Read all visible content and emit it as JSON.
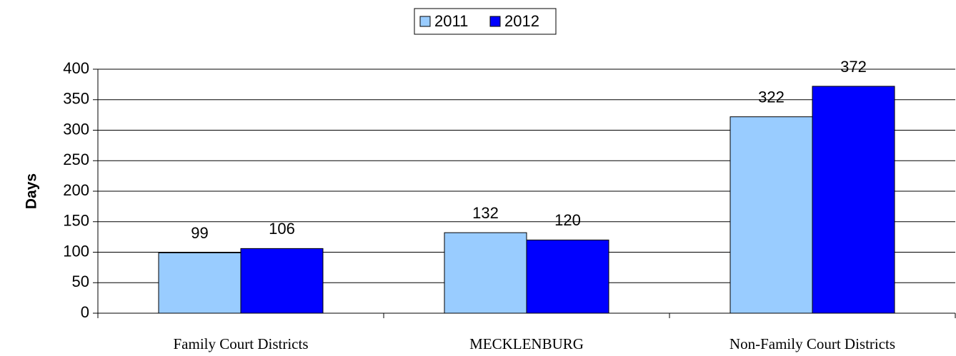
{
  "chart_data": {
    "type": "bar",
    "y_label": "Days",
    "categories": [
      "Family Court Districts",
      "MECKLENBURG",
      "Non-Family Court Districts"
    ],
    "series": [
      {
        "name": "2011",
        "color": "#99ccff",
        "values": [
          99,
          132,
          322
        ]
      },
      {
        "name": "2012",
        "color": "#0000ff",
        "values": [
          106,
          120,
          372
        ]
      }
    ],
    "ylim": [
      0,
      400
    ],
    "yticks": [
      0,
      50,
      100,
      150,
      200,
      250,
      300,
      350,
      400
    ],
    "grid": true,
    "legend": "top"
  }
}
